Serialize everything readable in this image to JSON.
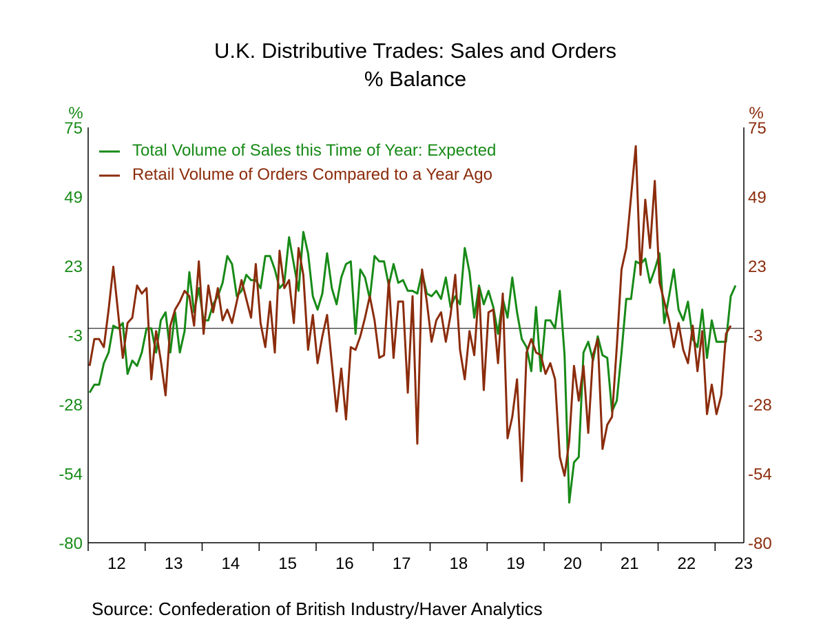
{
  "chart_data": {
    "type": "line",
    "title": "U.K. Distributive Trades: Sales and Orders",
    "subtitle": "% Balance",
    "left_axis_unit": "%",
    "right_axis_unit": "%",
    "ylim": [
      -80,
      75
    ],
    "y_ticks": [
      "75",
      "49",
      "23",
      "-3",
      "-28",
      "-54",
      "-80"
    ],
    "x_tick_labels": [
      "12",
      "13",
      "14",
      "15",
      "16",
      "17",
      "18",
      "19",
      "20",
      "21",
      "22",
      "23"
    ],
    "x_start": "2012-01",
    "x_frequency": "monthly",
    "zero_line": true,
    "grid": false,
    "legend_position": "top-left",
    "source": "Source:  Confederation of British Industry/Haver Analytics",
    "series": [
      {
        "name": "Total Volume of Sales this Time of Year: Expected",
        "color": "#178a17",
        "axis": "left",
        "values": [
          -24,
          -21,
          -21,
          -13,
          -9,
          1,
          0,
          2,
          -17,
          -12,
          -14,
          -9,
          0,
          0,
          -9,
          3,
          6,
          -9,
          6,
          -9,
          -1,
          21,
          6,
          15,
          3,
          3,
          9,
          12,
          17,
          27,
          24,
          12,
          14,
          20,
          18,
          18,
          15,
          27,
          27,
          22,
          15,
          17,
          34,
          24,
          14,
          36,
          28,
          12,
          7,
          13,
          28,
          15,
          9,
          19,
          24,
          25,
          -2,
          22,
          19,
          11,
          27,
          25,
          25,
          16,
          24,
          17,
          18,
          14,
          14,
          13,
          21,
          13,
          12,
          14,
          11,
          19,
          8,
          12,
          9,
          30,
          21,
          4,
          16,
          9,
          14,
          8,
          -2,
          11,
          4,
          19,
          6,
          -4,
          -7,
          -16,
          8,
          -16,
          3,
          3,
          0,
          14,
          -10,
          -65,
          -50,
          -48,
          -9,
          -5,
          -12,
          -3,
          -10,
          -11,
          -31,
          -27,
          -9,
          11,
          11,
          25,
          24,
          26,
          17,
          22,
          28,
          2,
          12,
          22,
          7,
          3,
          10,
          -4,
          -7,
          7,
          -11,
          3,
          -5,
          -5,
          -5,
          12,
          16
        ]
      },
      {
        "name": "Retail Volume of Orders Compared to a Year Ago",
        "color": "#8b2c0c",
        "axis": "right",
        "values": [
          -14,
          -4,
          -4,
          -7,
          7,
          23,
          6,
          -11,
          2,
          4,
          16,
          13,
          15,
          -19,
          -1,
          -12,
          -25,
          1,
          7,
          10,
          14,
          12,
          1,
          25,
          -2,
          16,
          6,
          15,
          3,
          7,
          2,
          10,
          18,
          11,
          4,
          24,
          2,
          -7,
          10,
          -9,
          29,
          15,
          18,
          2,
          30,
          20,
          -8,
          5,
          -13,
          -3,
          5,
          -13,
          -31,
          -15,
          -34,
          -7,
          -8,
          -3,
          4,
          12,
          3,
          -11,
          -10,
          18,
          -11,
          10,
          10,
          -24,
          12,
          -43,
          22,
          10,
          -5,
          3,
          6,
          -5,
          5,
          20,
          -8,
          -19,
          -1,
          -10,
          15,
          -23,
          6,
          7,
          -13,
          13,
          -41,
          -33,
          -19,
          -57,
          -9,
          -4,
          -9,
          -10,
          -17,
          -13,
          -19,
          -48,
          -55,
          -42,
          -14,
          -27,
          -14,
          -39,
          -10,
          -4,
          -45,
          -36,
          -33,
          -7,
          22,
          30,
          49,
          68,
          20,
          48,
          30,
          55,
          17,
          10,
          3,
          -7,
          2,
          -8,
          -13,
          1,
          -16,
          -1,
          -32,
          -21,
          -32,
          -25,
          -2,
          1
        ]
      }
    ]
  }
}
